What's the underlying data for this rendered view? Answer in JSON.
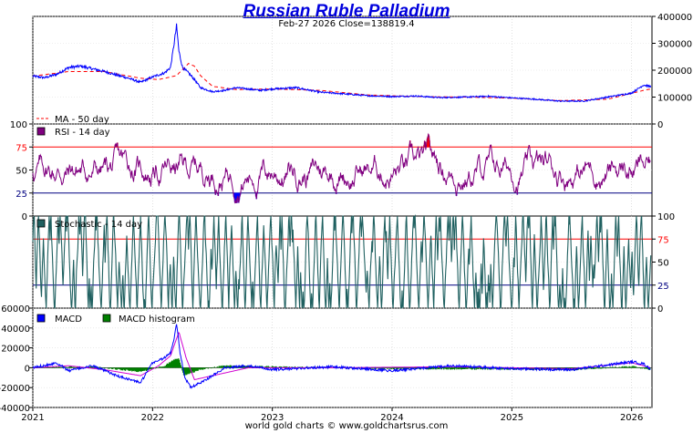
{
  "title": "Russian Ruble Palladium",
  "subtitle": "Feb-27  2026   Close=138819.4",
  "footer": "world gold charts © www.goldchartsrus.com",
  "colors": {
    "price": "#0000ff",
    "ma": "#ff0000",
    "rsi": "#800080",
    "rsi_over": "#ff0000",
    "rsi_under": "#0000ff",
    "stoch": "#1f6060",
    "macd": "#0000ff",
    "signal": "#d000d0",
    "hist": "#008000",
    "line75": "#ff0000",
    "line25": "#000080"
  },
  "chart_data": [
    {
      "type": "line",
      "panel": "price",
      "title": "Russian Ruble Palladium",
      "x_ticks": [
        "2021",
        "2022",
        "2023",
        "2024",
        "2025",
        "2026"
      ],
      "y_ticks": [
        "400000",
        "300000",
        "200000",
        "100000",
        "0"
      ],
      "ylim": [
        0,
        400000
      ],
      "legend": [
        "MA - 50 day"
      ],
      "series": [
        {
          "name": "Price",
          "x": [
            2021.0,
            2021.1,
            2021.2,
            2021.3,
            2021.4,
            2021.5,
            2021.6,
            2021.7,
            2021.8,
            2021.9,
            2022.0,
            2022.1,
            2022.15,
            2022.18,
            2022.2,
            2022.22,
            2022.25,
            2022.3,
            2022.35,
            2022.4,
            2022.5,
            2022.6,
            2022.7,
            2022.8,
            2022.9,
            2023.0,
            2023.2,
            2023.4,
            2023.6,
            2023.8,
            2024.0,
            2024.2,
            2024.4,
            2024.6,
            2024.8,
            2025.0,
            2025.2,
            2025.4,
            2025.6,
            2025.8,
            2026.0,
            2026.1,
            2026.16
          ],
          "values": [
            178000,
            172000,
            185000,
            210000,
            215000,
            205000,
            195000,
            182000,
            170000,
            155000,
            175000,
            190000,
            210000,
            300000,
            365000,
            270000,
            210000,
            190000,
            165000,
            135000,
            120000,
            125000,
            135000,
            130000,
            125000,
            130000,
            135000,
            118000,
            112000,
            105000,
            102000,
            104000,
            98000,
            100000,
            103000,
            97000,
            92000,
            85000,
            85000,
            100000,
            115000,
            145000,
            138819
          ]
        },
        {
          "name": "MA - 50 day",
          "x": [
            2021.0,
            2021.3,
            2021.6,
            2021.9,
            2022.05,
            2022.2,
            2022.3,
            2022.35,
            2022.4,
            2022.5,
            2022.7,
            2023.0,
            2023.4,
            2023.8,
            2024.2,
            2024.6,
            2025.0,
            2025.4,
            2025.8,
            2026.1,
            2026.16
          ],
          "values": [
            178000,
            195000,
            195000,
            170000,
            165000,
            180000,
            225000,
            215000,
            180000,
            140000,
            128000,
            130000,
            125000,
            108000,
            102000,
            100000,
            96000,
            87000,
            92000,
            125000,
            130000
          ]
        }
      ]
    },
    {
      "type": "line",
      "panel": "rsi",
      "legend": [
        "RSI - 14 day"
      ],
      "y_ticks": [
        "100",
        "75",
        "50",
        "25",
        "0"
      ],
      "ylim": [
        0,
        100
      ],
      "reference_lines": [
        75,
        25
      ]
    },
    {
      "type": "line",
      "panel": "stochastic",
      "legend": [
        "Stochastic - 14 day"
      ],
      "y_ticks": [
        "100",
        "75",
        "50",
        "25",
        "0"
      ],
      "ylim": [
        0,
        100
      ],
      "reference_lines": [
        75,
        25
      ]
    },
    {
      "type": "line",
      "panel": "macd",
      "legend": [
        "MACD",
        "MACD histogram"
      ],
      "y_ticks": [
        "60000",
        "40000",
        "20000",
        "0",
        "-20000",
        "-40000"
      ],
      "ylim": [
        -40000,
        60000
      ],
      "series": [
        {
          "name": "MACD",
          "x": [
            2021.0,
            2021.2,
            2021.3,
            2021.5,
            2021.7,
            2021.9,
            2022.0,
            2022.1,
            2022.15,
            2022.18,
            2022.2,
            2022.23,
            2022.27,
            2022.32,
            2022.4,
            2022.5,
            2022.6,
            2022.8,
            2023.0,
            2023.5,
            2024.0,
            2024.5,
            2025.0,
            2025.5,
            2026.0,
            2026.1,
            2026.16
          ],
          "values": [
            0,
            5000,
            -3000,
            2000,
            -8000,
            -15000,
            5000,
            10000,
            15000,
            30000,
            45000,
            15000,
            -10000,
            -20000,
            -15000,
            -8000,
            0,
            2000,
            -2000,
            1000,
            -3000,
            2000,
            -1000,
            -2000,
            6000,
            4000,
            -2000
          ]
        },
        {
          "name": "MACD signal",
          "x": [
            2021.0,
            2021.3,
            2021.6,
            2021.9,
            2022.05,
            2022.15,
            2022.22,
            2022.28,
            2022.35,
            2022.5,
            2022.8,
            2023.5,
            2024.5,
            2025.5,
            2026.0,
            2026.16
          ],
          "values": [
            0,
            2000,
            -2000,
            -8000,
            2000,
            12000,
            36000,
            10000,
            -12000,
            -8000,
            0,
            0,
            1000,
            -1000,
            5000,
            0
          ]
        },
        {
          "name": "MACD histogram",
          "x": [
            2021.0,
            2021.5,
            2021.9,
            2022.1,
            2022.18,
            2022.22,
            2022.26,
            2022.3,
            2022.4,
            2022.6,
            2023.0,
            2024.0,
            2025.0,
            2025.5,
            2026.0,
            2026.16
          ],
          "values": [
            0,
            1000,
            -4000,
            2000,
            8000,
            10000,
            -8000,
            -6000,
            -2000,
            2000,
            1000,
            -1000,
            -1500,
            -2000,
            1500,
            -2000
          ]
        }
      ]
    }
  ]
}
